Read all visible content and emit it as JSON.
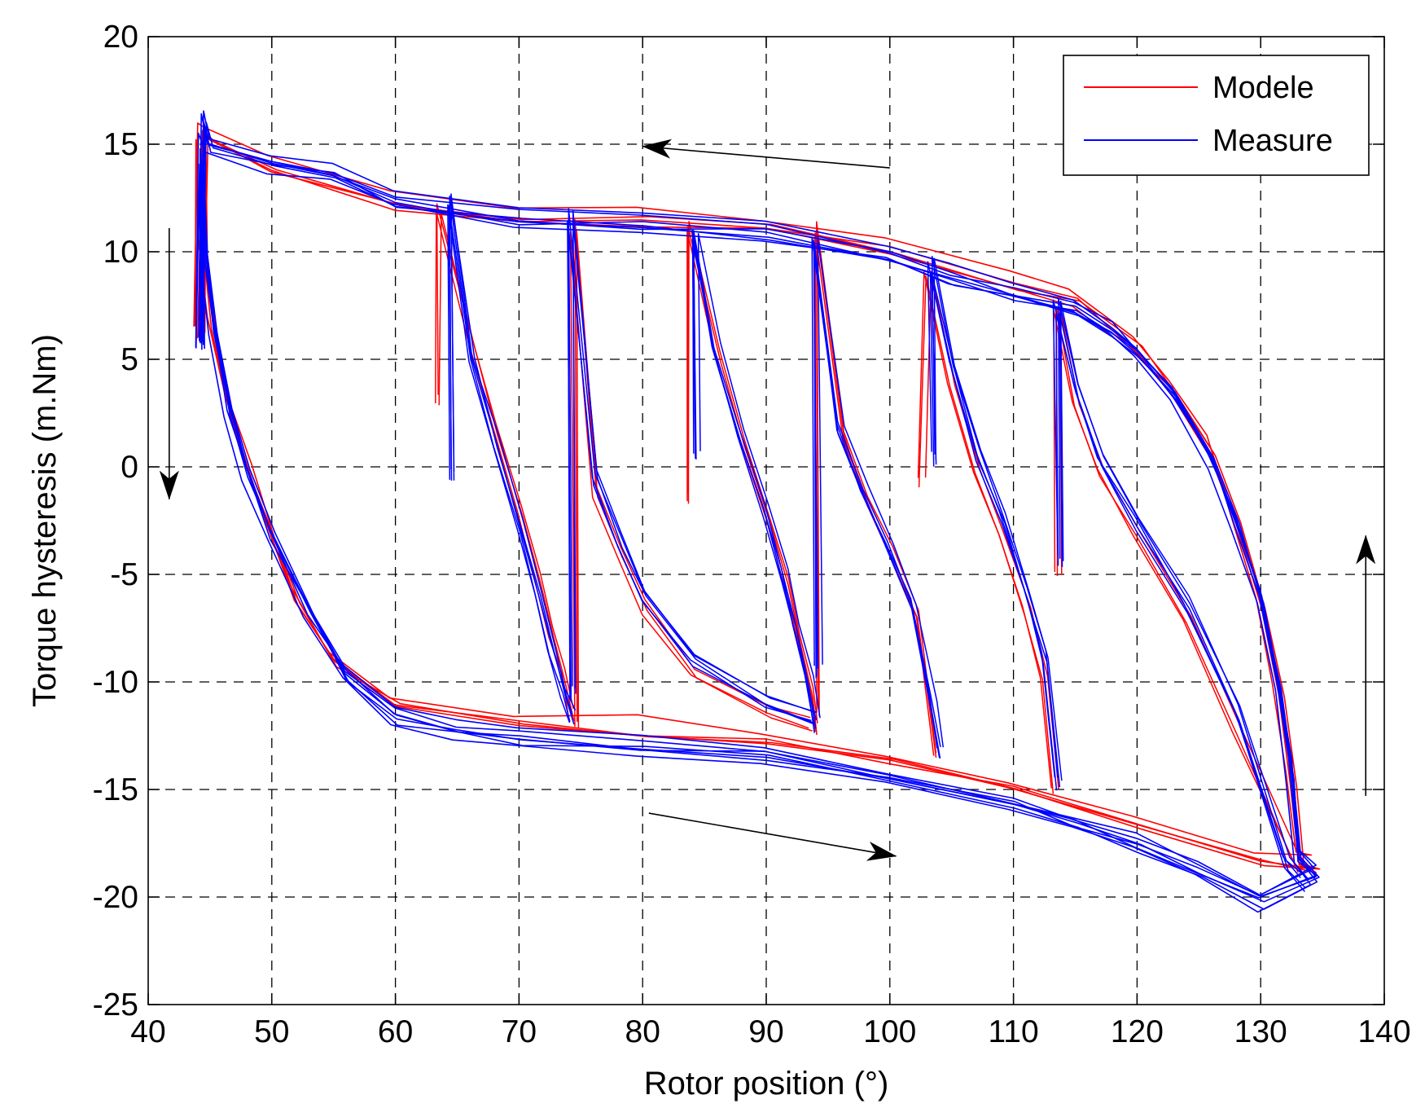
{
  "chart_data": {
    "type": "line",
    "title": "",
    "xlabel": "Rotor position (°)",
    "ylabel": "Torque hysteresis (m.Nm)",
    "xlim": [
      40,
      140
    ],
    "ylim": [
      -25,
      20
    ],
    "x_ticks": [
      40,
      50,
      60,
      70,
      80,
      90,
      100,
      110,
      120,
      130,
      140
    ],
    "y_ticks": [
      -25,
      -20,
      -15,
      -10,
      -5,
      0,
      5,
      10,
      15,
      20
    ],
    "grid": true,
    "legend_position": "top-right",
    "legend": [
      {
        "label": "Modele",
        "color": "#ff0000"
      },
      {
        "label": "Measure",
        "color": "#0000ff"
      }
    ],
    "direction_arrows": [
      {
        "name": "arrow-top-left",
        "from": [
          100,
          13.9
        ],
        "to": [
          80,
          14.9
        ]
      },
      {
        "name": "arrow-bottom-right",
        "from": [
          80.5,
          -16.1
        ],
        "to": [
          100.5,
          -18.1
        ]
      },
      {
        "name": "arrow-left-down",
        "from": [
          41.7,
          11.1
        ],
        "to": [
          41.7,
          -1.5
        ]
      },
      {
        "name": "arrow-right-up",
        "from": [
          138.5,
          -15.3
        ],
        "to": [
          138.5,
          -3.2
        ]
      }
    ],
    "series": [
      {
        "name": "Modele",
        "color": "#ff0000",
        "major_loop": [
          [
            44.2,
            6.2
          ],
          [
            44.4,
            15.5
          ],
          [
            45,
            15.2
          ],
          [
            50,
            14
          ],
          [
            60,
            12.3
          ],
          [
            70,
            11.7
          ],
          [
            80,
            11.5
          ],
          [
            90,
            11.2
          ],
          [
            100,
            10.2
          ],
          [
            110,
            8.5
          ],
          [
            115,
            7.8
          ],
          [
            120,
            5.5
          ],
          [
            123,
            3.5
          ],
          [
            126,
            0.8
          ],
          [
            128,
            -2.5
          ],
          [
            130,
            -6.5
          ],
          [
            131.5,
            -10.5
          ],
          [
            132.5,
            -14.5
          ],
          [
            133.2,
            -18.4
          ],
          [
            134.5,
            -18.7
          ],
          [
            130,
            -18.3
          ],
          [
            120,
            -16.7
          ],
          [
            110,
            -15
          ],
          [
            100,
            -13.7
          ],
          [
            90,
            -12.8
          ],
          [
            80,
            -12.2
          ],
          [
            70,
            -11.9
          ],
          [
            60,
            -11.1
          ],
          [
            55,
            -9
          ],
          [
            52,
            -6
          ],
          [
            50,
            -3
          ],
          [
            48,
            0
          ],
          [
            46.5,
            3
          ],
          [
            45.2,
            6.5
          ],
          [
            44.5,
            10
          ],
          [
            44.2,
            14.8
          ]
        ],
        "minor_loops": [
          {
            "branch_descending": [
              [
                63.3,
                3.3
              ],
              [
                63.3,
                12.0
              ],
              [
                66,
                6
              ],
              [
                68,
                2
              ],
              [
                70,
                -2
              ],
              [
                71.5,
                -5
              ],
              [
                72.5,
                -7.5
              ],
              [
                73.5,
                -9.5
              ],
              [
                74.2,
                -11.5
              ]
            ],
            "branch_ascending": [
              [
                74.5,
                -11.9
              ],
              [
                74.3,
                11.3
              ],
              [
                76,
                -1
              ],
              [
                78,
                -4
              ],
              [
                80,
                -6.5
              ],
              [
                84,
                -9.5
              ],
              [
                90,
                -11.2
              ],
              [
                93.5,
                -12
              ]
            ]
          },
          {
            "branch_descending": [
              [
                83.5,
                -1.5
              ],
              [
                83.5,
                11.2
              ],
              [
                86,
                5
              ],
              [
                88,
                1
              ],
              [
                90,
                -2.5
              ],
              [
                91.5,
                -5.5
              ],
              [
                92.5,
                -8
              ],
              [
                93.5,
                -10.5
              ],
              [
                93.8,
                -12.2
              ]
            ],
            "branch_ascending": [
              [
                94,
                -11.5
              ],
              [
                93.8,
                11.1
              ],
              [
                96,
                1.5
              ],
              [
                98,
                -1.5
              ],
              [
                100,
                -4
              ],
              [
                102,
                -7
              ],
              [
                103.5,
                -13.5
              ]
            ]
          },
          {
            "branch_descending": [
              [
                102.5,
                -0.5
              ],
              [
                103,
                9.2
              ],
              [
                105,
                4
              ],
              [
                107,
                0
              ],
              [
                109,
                -3
              ],
              [
                111,
                -6.5
              ],
              [
                112.5,
                -9.5
              ],
              [
                113.3,
                -14.8
              ]
            ],
            "branch_ascending": [
              [
                113.6,
                -4.8
              ],
              [
                113.5,
                7.6
              ],
              [
                115,
                3
              ],
              [
                117,
                0
              ],
              [
                120,
                -3
              ],
              [
                124,
                -7
              ],
              [
                128,
                -12
              ],
              [
                133,
                -18.4
              ]
            ]
          }
        ]
      },
      {
        "name": "Measure",
        "color": "#0000ff",
        "major_loop": [
          [
            44.3,
            6.0
          ],
          [
            44.5,
            16.1
          ],
          [
            45,
            15
          ],
          [
            50,
            14.2
          ],
          [
            55,
            13.7
          ],
          [
            60,
            12.5
          ],
          [
            70,
            11.7
          ],
          [
            80,
            11.4
          ],
          [
            90,
            11.0
          ],
          [
            100,
            10.0
          ],
          [
            105,
            9.0
          ],
          [
            110,
            8.2
          ],
          [
            115,
            7.5
          ],
          [
            118,
            6.5
          ],
          [
            120,
            5.5
          ],
          [
            123,
            3.5
          ],
          [
            126,
            0.5
          ],
          [
            128,
            -2.5
          ],
          [
            130,
            -6.0
          ],
          [
            131.5,
            -10.0
          ],
          [
            132.5,
            -14.0
          ],
          [
            133,
            -18.0
          ],
          [
            134.5,
            -19.0
          ],
          [
            130,
            -20.0
          ],
          [
            125,
            -18.6
          ],
          [
            120,
            -17.4
          ],
          [
            115,
            -16.5
          ],
          [
            110,
            -15.6
          ],
          [
            100,
            -14.3
          ],
          [
            90,
            -13.3
          ],
          [
            80,
            -12.9
          ],
          [
            70,
            -12.4
          ],
          [
            65,
            -12.0
          ],
          [
            60,
            -11.5
          ],
          [
            56,
            -9.5
          ],
          [
            53,
            -6.5
          ],
          [
            50,
            -3.0
          ],
          [
            48,
            0
          ],
          [
            46.5,
            3.0
          ],
          [
            45.3,
            6.5
          ],
          [
            44.6,
            10.0
          ],
          [
            44.4,
            14.5
          ]
        ],
        "minor_loops": [
          {
            "branch_descending": [
              [
                64.5,
                -0.5
              ],
              [
                64.3,
                12.4
              ],
              [
                66,
                5
              ],
              [
                68,
                1
              ],
              [
                70,
                -3
              ],
              [
                71.5,
                -6
              ],
              [
                72.5,
                -8.5
              ],
              [
                73.5,
                -10.5
              ],
              [
                74.2,
                -11.8
              ]
            ],
            "branch_ascending": [
              [
                74.2,
                -10.5
              ],
              [
                74,
                11.6
              ],
              [
                76,
                -0.5
              ],
              [
                78,
                -3.5
              ],
              [
                80,
                -6
              ],
              [
                84,
                -9
              ],
              [
                90,
                -11
              ],
              [
                93.8,
                -11.8
              ]
            ]
          },
          {
            "branch_descending": [
              [
                84.5,
                0.5
              ],
              [
                84.3,
                10.8
              ],
              [
                86,
                5.5
              ],
              [
                88,
                1.5
              ],
              [
                90,
                -2
              ],
              [
                91.5,
                -5
              ],
              [
                92.5,
                -7.5
              ],
              [
                93.5,
                -10
              ],
              [
                94.2,
                -12
              ]
            ],
            "branch_ascending": [
              [
                94.3,
                -9.5
              ],
              [
                94,
                10.5
              ],
              [
                96,
                1.8
              ],
              [
                98,
                -1.2
              ],
              [
                100,
                -3.8
              ],
              [
                102,
                -6.5
              ],
              [
                103.5,
                -11
              ],
              [
                104.2,
                -13.2
              ]
            ]
          },
          {
            "branch_descending": [
              [
                103.5,
                0.2
              ],
              [
                103.2,
                9.3
              ],
              [
                105,
                4.5
              ],
              [
                107,
                0.5
              ],
              [
                109,
                -2.5
              ],
              [
                111,
                -6
              ],
              [
                112.5,
                -9
              ],
              [
                113.5,
                -14.8
              ]
            ],
            "branch_ascending": [
              [
                113.7,
                -4.5
              ],
              [
                113.5,
                7.4
              ],
              [
                115,
                3.5
              ],
              [
                117,
                0.2
              ],
              [
                120,
                -2.8
              ],
              [
                124,
                -6.5
              ],
              [
                128,
                -11.5
              ],
              [
                132,
                -18.5
              ],
              [
                133.5,
                -19.5
              ]
            ]
          }
        ]
      }
    ]
  }
}
